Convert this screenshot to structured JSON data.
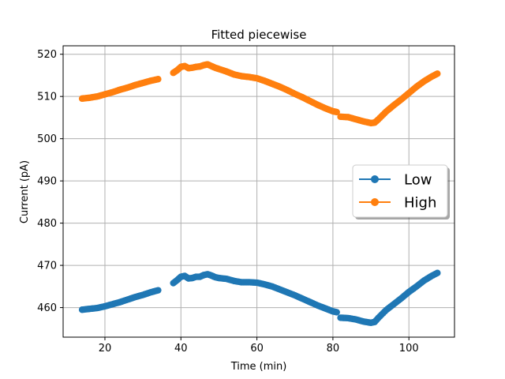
{
  "chart_data": {
    "type": "line",
    "title": "Fitted piecewise",
    "xlabel": "Time (min)",
    "ylabel": "Current (pA)",
    "xlim": [
      9,
      112
    ],
    "ylim": [
      453,
      522
    ],
    "xticks": [
      20,
      40,
      60,
      80,
      100
    ],
    "yticks": [
      460,
      470,
      480,
      490,
      500,
      510,
      520
    ],
    "grid": true,
    "legend_position": "center-right",
    "colors": {
      "Low": "#1f77b4",
      "High": "#ff7f0e"
    },
    "series": [
      {
        "name": "Low",
        "segments": [
          {
            "x": [
              14,
              16,
              18,
              20,
              22,
              24,
              26,
              28,
              30,
              32,
              34
            ],
            "y": [
              459.5,
              459.7,
              459.9,
              460.3,
              460.8,
              461.3,
              461.9,
              462.5,
              463.0,
              463.6,
              464.1
            ]
          },
          {
            "x": [
              38,
              39,
              40,
              41,
              42,
              43,
              44,
              45,
              46,
              47,
              48,
              49,
              50,
              52,
              54,
              56,
              58,
              60,
              62,
              64,
              66,
              68,
              70,
              72,
              74,
              76,
              78,
              80,
              81
            ],
            "y": [
              465.8,
              466.5,
              467.3,
              467.5,
              466.9,
              467.0,
              467.3,
              467.3,
              467.7,
              467.9,
              467.6,
              467.2,
              467.0,
              466.8,
              466.3,
              466.0,
              466.0,
              465.9,
              465.5,
              465.0,
              464.3,
              463.6,
              462.9,
              462.1,
              461.3,
              460.5,
              459.8,
              459.1,
              458.9
            ]
          },
          {
            "x": [
              82,
              84,
              86,
              88,
              90,
              91,
              92,
              94,
              96,
              98,
              100,
              102,
              104,
              106,
              107.5
            ],
            "y": [
              457.6,
              457.5,
              457.2,
              456.7,
              456.4,
              456.6,
              457.6,
              459.4,
              460.8,
              462.2,
              463.7,
              465.0,
              466.4,
              467.5,
              468.2
            ]
          }
        ]
      },
      {
        "name": "High",
        "segments": [
          {
            "x": [
              14,
              16,
              18,
              20,
              22,
              24,
              26,
              28,
              30,
              32,
              34
            ],
            "y": [
              509.5,
              509.7,
              510.0,
              510.5,
              511.0,
              511.6,
              512.1,
              512.7,
              513.2,
              513.7,
              514.1
            ]
          },
          {
            "x": [
              38,
              39,
              40,
              41,
              42,
              43,
              44,
              45,
              46,
              47,
              48,
              49,
              50,
              52,
              54,
              56,
              58,
              60,
              62,
              64,
              66,
              68,
              70,
              72,
              74,
              76,
              78,
              80,
              81
            ],
            "y": [
              515.6,
              516.2,
              517.0,
              517.2,
              516.7,
              516.8,
              517.0,
              517.1,
              517.4,
              517.6,
              517.2,
              516.8,
              516.5,
              515.9,
              515.2,
              514.8,
              514.6,
              514.3,
              513.7,
              513.0,
              512.3,
              511.5,
              510.6,
              509.8,
              508.9,
              508.0,
              507.2,
              506.5,
              506.3
            ]
          },
          {
            "x": [
              82,
              84,
              86,
              88,
              90,
              91,
              92,
              94,
              96,
              98,
              100,
              102,
              104,
              106,
              107.5
            ],
            "y": [
              505.2,
              505.1,
              504.6,
              504.1,
              503.7,
              503.8,
              504.6,
              506.4,
              507.9,
              509.3,
              510.8,
              512.3,
              513.6,
              514.7,
              515.4
            ]
          }
        ]
      }
    ]
  }
}
